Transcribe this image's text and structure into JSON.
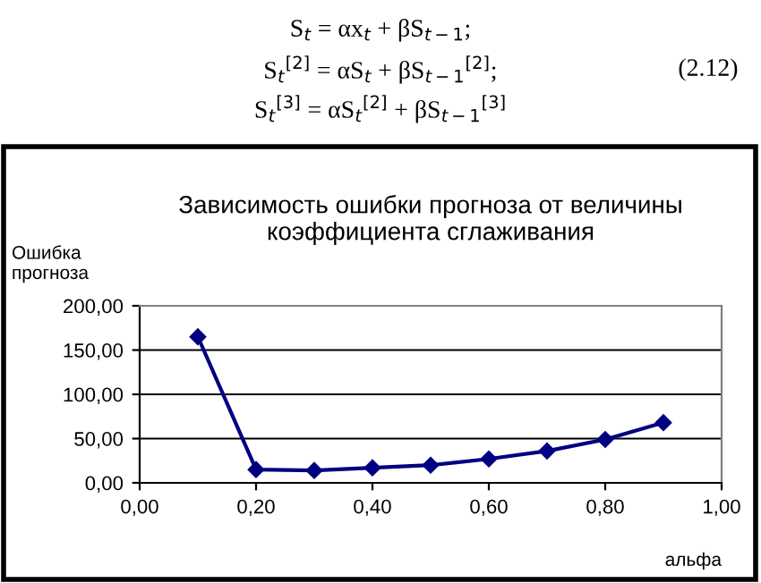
{
  "chart_data": {
    "type": "line",
    "title": "Зависимость ошибки прогноза от величины коэффициента сглаживания",
    "ylabel": "Ошибка прогноза",
    "xlabel": "альфа",
    "annotations": [
      "S$_{t}$ = αx$_{t}$ + βS$_{t−1}$;",
      "S$_{t}$$^{[2]}$ = αS$_{t}$ + βS$_{t−1}$$^{[2]}$;",
      "S$_{t}$$^{[3]}$ = αS$_{t}$$^{[2]}$ + βS$_{t−1}$$^{[3]}$",
      "(2.12)"
    ],
    "x": [
      0.1,
      0.2,
      0.3,
      0.4,
      0.5,
      0.6,
      0.7,
      0.8,
      0.9
    ],
    "series": [
      {
        "color": "#000080",
        "values": [
          165,
          15,
          14,
          17,
          20,
          27,
          36,
          49,
          68
        ]
      }
    ],
    "xlim": [
      0,
      1
    ],
    "ylim": [
      0,
      200
    ],
    "xticks": [
      {
        "value": 0,
        "label": "0,00"
      },
      {
        "value": 0.2,
        "label": "0,20"
      },
      {
        "value": 0.4,
        "label": "0,40"
      },
      {
        "value": 0.6,
        "label": "0,60"
      },
      {
        "value": 0.8,
        "label": "0,80"
      },
      {
        "value": 1,
        "label": "1,00"
      }
    ],
    "yticks": [
      {
        "value": 0,
        "label": "0,00"
      },
      {
        "value": 50,
        "label": "50,00"
      },
      {
        "value": 100,
        "label": "100,00"
      },
      {
        "value": 150,
        "label": "150,00"
      },
      {
        "value": 200,
        "label": "200,00"
      }
    ],
    "grid": "y",
    "marker": "diamond",
    "line_style": "solid",
    "legend": false
  }
}
